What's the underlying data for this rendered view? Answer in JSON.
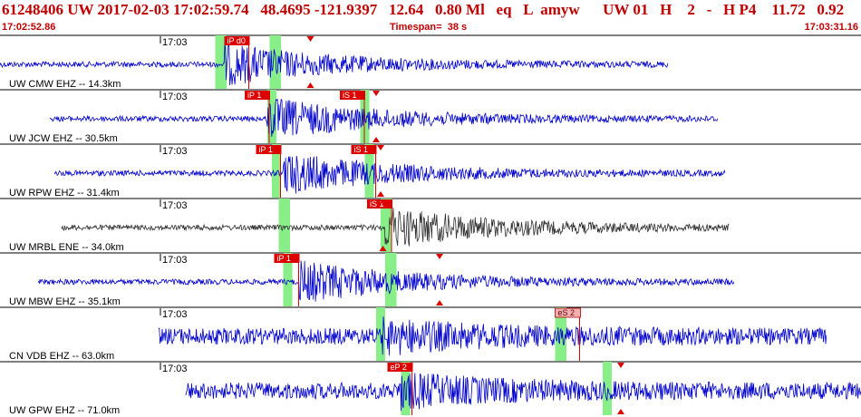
{
  "header": {
    "event_line": "61248406 UW 2017-02-03 17:02:59.74   48.4695 -121.9397   12.64   0.80 Ml   eq   L  amyw      UW 01   H    2   -   H P4    11.72   0.92",
    "start_time": "17:02:52.86",
    "timespan_label": "Timespan=",
    "timespan_value": "38 s",
    "end_time": "17:03:31.16"
  },
  "colors": {
    "header_text": "#c00000",
    "trace_blue": "#0000cc",
    "trace_gray": "#303030",
    "pick_red": "#dd0000",
    "pick_pink": "#f4b0b0",
    "window_green": "#88ee88",
    "divider": "#000000"
  },
  "chart_data": {
    "type": "line",
    "title": "61248406 UW 2017-02-03 17:02:59.74",
    "x_unit": "time",
    "time_range": [
      "17:02:52.86",
      "17:03:31.16"
    ],
    "timespan_seconds": 38,
    "series": [
      {
        "name": "UW CMW EHZ -- 14.3km",
        "station": "CMW",
        "minute_label": "17:03",
        "trace_color": "trace_blue",
        "amplitude": "medium",
        "trace_start_s": 0.0,
        "trace_end_s": 29.5,
        "onset_s": 9.9,
        "picks": [
          {
            "label": "iP d0",
            "time_s": 9.9,
            "style": "red"
          }
        ],
        "green_windows": [
          [
            9.5,
            10.0
          ],
          [
            11.9,
            12.4
          ]
        ],
        "triangles_s": [
          13.7
        ]
      },
      {
        "name": "UW JCW EHZ -- 30.5km",
        "station": "JCW",
        "minute_label": "17:03",
        "trace_color": "trace_blue",
        "amplitude": "medium",
        "trace_start_s": 2.2,
        "trace_end_s": 31.7,
        "onset_s": 11.8,
        "picks": [
          {
            "label": "iP 1",
            "time_s": 10.8,
            "style": "red"
          },
          {
            "label": "iS 1",
            "time_s": 15.0,
            "style": "red"
          }
        ],
        "green_windows": [
          [
            11.8,
            12.2
          ],
          [
            15.9,
            16.3
          ]
        ],
        "triangles_s": [
          16.6
        ]
      },
      {
        "name": "UW RPW EHZ -- 31.4km",
        "station": "RPW",
        "minute_label": "17:03",
        "trace_color": "trace_blue",
        "amplitude": "medium",
        "trace_start_s": 2.4,
        "trace_end_s": 32.0,
        "onset_s": 12.5,
        "picks": [
          {
            "label": "iP 1",
            "time_s": 11.3,
            "style": "red"
          },
          {
            "label": "iS 1",
            "time_s": 15.5,
            "style": "red"
          }
        ],
        "green_windows": [
          [
            12.0,
            12.4
          ],
          [
            16.1,
            16.5
          ]
        ],
        "triangles_s": [
          16.8
        ]
      },
      {
        "name": "UW MRBL ENE -- 34.0km",
        "station": "MRBL",
        "minute_label": "17:03",
        "trace_color": "trace_gray",
        "amplitude": "medium",
        "trace_start_s": 2.7,
        "trace_end_s": 32.2,
        "onset_s": 17.0,
        "picks": [
          {
            "label": "iS 1",
            "time_s": 16.2,
            "style": "red"
          }
        ],
        "green_windows": [
          [
            12.3,
            12.8
          ],
          [
            16.8,
            17.3
          ]
        ],
        "triangles_s": [
          16.9
        ]
      },
      {
        "name": "UW MBW EHZ -- 35.1km",
        "station": "MBW",
        "minute_label": "17:03",
        "trace_color": "trace_blue",
        "amplitude": "medium",
        "trace_start_s": 1.7,
        "trace_end_s": 32.4,
        "onset_s": 13.2,
        "picks": [
          {
            "label": "iP 1",
            "time_s": 12.1,
            "style": "red"
          }
        ],
        "green_windows": [
          [
            12.5,
            12.9
          ],
          [
            17.0,
            17.5
          ]
        ],
        "triangles_s": [
          19.4
        ]
      },
      {
        "name": "CN VDB EHZ -- 63.0km",
        "station": "VDB",
        "minute_label": "17:03",
        "trace_color": "trace_blue",
        "amplitude": "large",
        "trace_start_s": 7.0,
        "trace_end_s": 36.5,
        "onset_s": 16.8,
        "picks": [
          {
            "label": "eS 2",
            "time_s": 24.5,
            "style": "pink"
          }
        ],
        "green_windows": [
          [
            16.6,
            17.0
          ],
          [
            24.5,
            25.0
          ]
        ],
        "triangles_s": []
      },
      {
        "name": "UW GPW EHZ -- 71.0km",
        "station": "GPW",
        "minute_label": "17:03",
        "trace_color": "trace_blue",
        "amplitude": "large",
        "trace_start_s": 8.2,
        "trace_end_s": 38.0,
        "onset_s": 17.6,
        "picks": [
          {
            "label": "eP 2",
            "time_s": 17.1,
            "style": "red"
          }
        ],
        "green_windows": [
          [
            17.7,
            18.1
          ],
          [
            26.6,
            27.0
          ]
        ],
        "triangles_s": [
          27.4
        ]
      }
    ]
  }
}
